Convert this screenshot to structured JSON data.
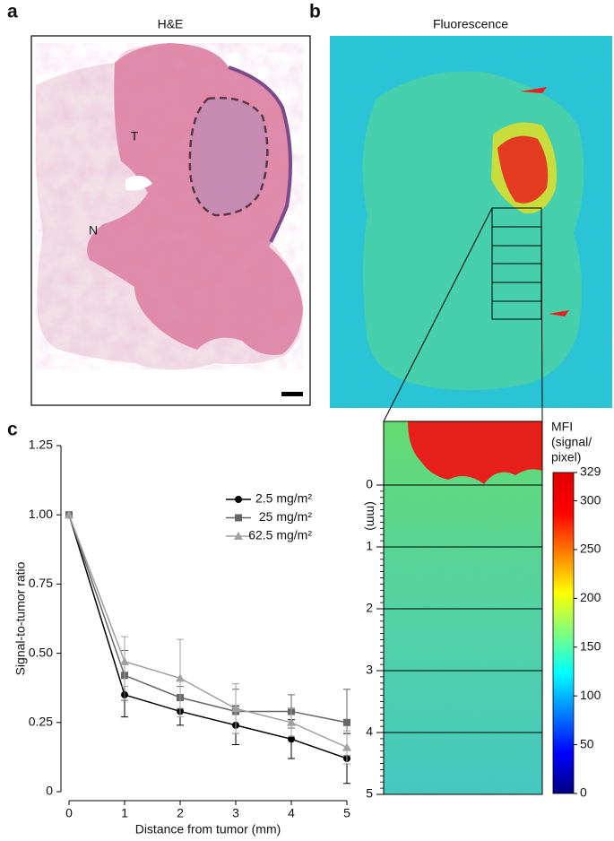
{
  "panels": {
    "a": {
      "letter": "a",
      "title": "H&E",
      "labels": [
        "T",
        "N"
      ]
    },
    "b": {
      "letter": "b",
      "title": "Fluorescence"
    },
    "c": {
      "letter": "c"
    }
  },
  "chart_data": [
    {
      "type": "line",
      "xlabel": "Distance from tumor (mm)",
      "ylabel": "Signal-to-tumor ratio",
      "x": [
        0,
        1,
        2,
        3,
        4,
        5
      ],
      "xlim": [
        0,
        5
      ],
      "xticks": [
        0,
        1,
        2,
        3,
        4,
        5
      ],
      "ylim": [
        0,
        1.25
      ],
      "yticks": [
        0,
        0.25,
        {
          "value": 0.5,
          "label": "0.50"
        },
        0.75,
        {
          "value": 1,
          "label": "1.00"
        },
        1.25
      ],
      "legend": "upper right",
      "series": [
        {
          "name": "2.5 mg/m²",
          "color": "#000000",
          "marker": "circle",
          "values": [
            1.0,
            0.35,
            0.29,
            0.24,
            0.19,
            0.12
          ],
          "errors": [
            0,
            0.08,
            0.05,
            0.07,
            0.07,
            0.09
          ]
        },
        {
          "name": "25 mg/m²",
          "color": "#666666",
          "marker": "square",
          "values": [
            1.0,
            0.42,
            0.34,
            0.29,
            0.29,
            0.25
          ],
          "errors": [
            0,
            0.09,
            0.04,
            0.08,
            0.06,
            0.12
          ]
        },
        {
          "name": "62.5 mg/m²",
          "color": "#a0a0a0",
          "marker": "triangle",
          "values": [
            1.0,
            0.47,
            0.41,
            0.3,
            0.25,
            0.16
          ],
          "errors": [
            0,
            0.09,
            0.14,
            0.09,
            0.05,
            0.06
          ]
        }
      ]
    },
    {
      "type": "colorbar",
      "title": [
        "MFI",
        "(signal/",
        "pixel)"
      ],
      "colormap": "jet",
      "lim": [
        0,
        329
      ],
      "ticks": [
        0,
        50,
        100,
        150,
        200,
        250,
        300,
        329
      ]
    },
    {
      "type": "axis",
      "label": "(mm)",
      "lim": [
        0,
        5
      ],
      "ticks": [
        0,
        1,
        2,
        3,
        4,
        5
      ]
    }
  ]
}
